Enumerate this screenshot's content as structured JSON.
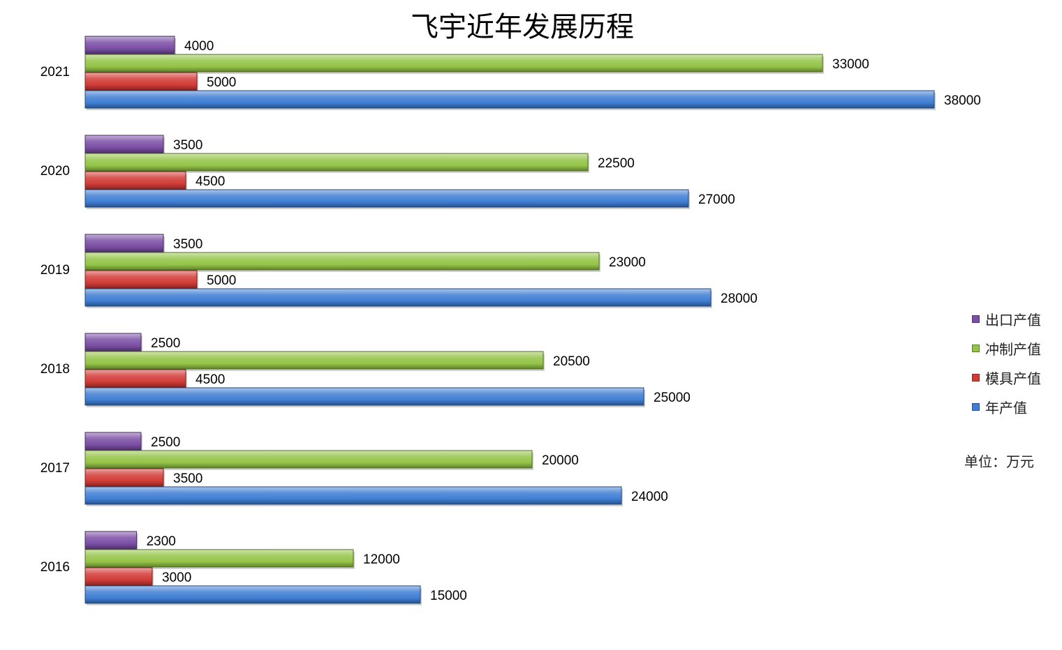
{
  "chart_data": {
    "type": "bar",
    "orientation": "horizontal",
    "title": "飞宇近年发展历程",
    "unit_note": "单位：万元",
    "categories": [
      "2021",
      "2020",
      "2019",
      "2018",
      "2017",
      "2016"
    ],
    "series": [
      {
        "name": "出口产值",
        "color": "#7b4fa6",
        "values": [
          4000,
          3500,
          3500,
          2500,
          2500,
          2300
        ]
      },
      {
        "name": "冲制产值",
        "color": "#94c447",
        "values": [
          33000,
          22500,
          23000,
          20500,
          20000,
          12000
        ]
      },
      {
        "name": "模具产值",
        "color": "#d23c37",
        "values": [
          5000,
          4500,
          5000,
          4500,
          3500,
          3000
        ]
      },
      {
        "name": "年产值",
        "color": "#3f7ed4",
        "values": [
          38000,
          27000,
          28000,
          25000,
          24000,
          15000
        ]
      }
    ],
    "xlim": [
      0,
      40000
    ],
    "grid": false,
    "legend_position": "right"
  }
}
